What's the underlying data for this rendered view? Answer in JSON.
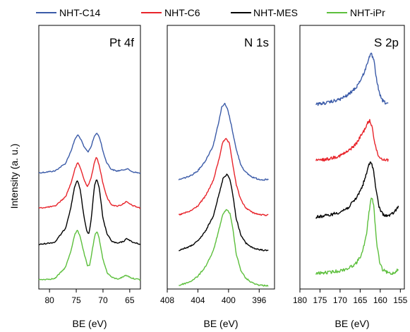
{
  "figure": {
    "ylabel": "Intensity (a. u.)"
  },
  "legend": [
    {
      "label": "NHT-C14",
      "color": "#3b5ba8"
    },
    {
      "label": "NHT-C6",
      "color": "#e8242b"
    },
    {
      "label": "NHT-MES",
      "color": "#000000"
    },
    {
      "label": "NHT-iPr",
      "color": "#5cbf3c"
    }
  ],
  "chart_data": [
    {
      "type": "line",
      "title": "Pt 4f",
      "xlabel": "BE (eV)",
      "xlim": [
        82,
        63
      ],
      "x_reversed": true,
      "ticks": [
        80,
        75,
        70,
        65
      ],
      "ylabel": "Intensity (a. u.)",
      "grid": false,
      "series": [
        {
          "name": "NHT-C14",
          "color": "#3b5ba8",
          "offset": 3,
          "x": [
            82,
            79,
            77,
            76,
            75.2,
            74.7,
            74.2,
            73.5,
            72.8,
            72.2,
            71.6,
            71.1,
            70.6,
            70,
            69.4,
            68.5,
            67.5,
            66.5,
            65.5,
            64.5,
            63
          ],
          "y": [
            0.05,
            0.1,
            0.3,
            0.62,
            0.95,
            1.05,
            0.95,
            0.72,
            0.6,
            0.75,
            1.02,
            1.1,
            0.96,
            0.62,
            0.35,
            0.15,
            0.1,
            0.12,
            0.16,
            0.08,
            0.04
          ]
        },
        {
          "name": "NHT-C6",
          "color": "#e8242b",
          "offset": 2,
          "x": [
            82,
            79,
            77,
            76,
            75.2,
            74.7,
            74.2,
            73.5,
            72.9,
            72.3,
            71.6,
            71.2,
            70.7,
            70,
            69.3,
            68.5,
            67.5,
            66.5,
            65.7,
            64.5,
            63
          ],
          "y": [
            0.05,
            0.1,
            0.35,
            0.7,
            1.1,
            1.25,
            1.1,
            0.78,
            0.62,
            0.8,
            1.25,
            1.4,
            1.18,
            0.7,
            0.35,
            0.15,
            0.1,
            0.14,
            0.22,
            0.12,
            0.05
          ]
        },
        {
          "name": "NHT-MES",
          "color": "#000000",
          "offset": 1,
          "x": [
            82,
            79,
            77,
            76,
            75.3,
            74.8,
            74.3,
            73.6,
            73,
            72.6,
            72.2,
            71.6,
            71.2,
            70.7,
            70,
            69.2,
            68.3,
            67.3,
            66.2,
            65.5,
            64.5,
            63
          ],
          "y": [
            0.02,
            0.08,
            0.45,
            1.0,
            1.55,
            1.7,
            1.5,
            0.8,
            0.35,
            0.3,
            0.7,
            1.55,
            1.75,
            1.5,
            0.7,
            0.28,
            0.1,
            0.05,
            0.1,
            0.18,
            0.08,
            0.03
          ]
        },
        {
          "name": "NHT-iPr",
          "color": "#5cbf3c",
          "offset": 0,
          "x": [
            82,
            79,
            77,
            76,
            75.3,
            74.8,
            74.3,
            73.6,
            72.9,
            72.5,
            72,
            71.5,
            71.1,
            70.7,
            70,
            69.2,
            68.3,
            67.3,
            66.5,
            65.7,
            64.5,
            63
          ],
          "y": [
            0.02,
            0.05,
            0.35,
            0.78,
            1.2,
            1.32,
            1.18,
            0.75,
            0.38,
            0.4,
            0.8,
            1.2,
            1.28,
            1.1,
            0.55,
            0.2,
            0.08,
            0.04,
            0.08,
            0.14,
            0.06,
            0.02
          ]
        }
      ]
    },
    {
      "type": "line",
      "title": "N 1s",
      "xlabel": "BE (eV)",
      "xlim": [
        408,
        394
      ],
      "x_reversed": true,
      "ticks": [
        408,
        404,
        400,
        396
      ],
      "grid": false,
      "series": [
        {
          "name": "NHT-C14",
          "color": "#3b5ba8",
          "offset": 3,
          "x": [
            406.5,
            405,
            404,
            403,
            402,
            401.3,
            400.9,
            400.5,
            400.1,
            399.6,
            399,
            398.4,
            397.8,
            397,
            396.2,
            395.5,
            394.8
          ],
          "y": [
            0.0,
            0.05,
            0.12,
            0.25,
            0.45,
            0.75,
            0.95,
            1.0,
            0.92,
            0.7,
            0.4,
            0.2,
            0.1,
            0.04,
            0.01,
            0.0,
            0.0
          ]
        },
        {
          "name": "NHT-C6",
          "color": "#e8242b",
          "offset": 2,
          "x": [
            406.5,
            405,
            404,
            403,
            402,
            401.2,
            400.8,
            400.3,
            399.9,
            399.5,
            399,
            398.4,
            397.8,
            397,
            396.2,
            395.5,
            394.8
          ],
          "y": [
            0.0,
            0.05,
            0.12,
            0.25,
            0.45,
            0.75,
            0.95,
            1.0,
            0.94,
            0.7,
            0.4,
            0.2,
            0.1,
            0.04,
            0.01,
            0.0,
            0.0
          ]
        },
        {
          "name": "NHT-MES",
          "color": "#000000",
          "offset": 1,
          "x": [
            406.5,
            405,
            404,
            403,
            402,
            401.2,
            400.7,
            400.2,
            399.8,
            399.4,
            399,
            398.4,
            397.8,
            397,
            396.2,
            395.5,
            394.8
          ],
          "y": [
            0.0,
            0.05,
            0.12,
            0.25,
            0.45,
            0.75,
            0.95,
            1.0,
            0.93,
            0.7,
            0.42,
            0.2,
            0.1,
            0.04,
            0.01,
            0.0,
            0.0
          ]
        },
        {
          "name": "NHT-iPr",
          "color": "#5cbf3c",
          "offset": 0,
          "x": [
            406.5,
            405,
            404,
            403,
            402,
            401.2,
            400.7,
            400.2,
            399.8,
            399.4,
            399,
            398.4,
            397.8,
            397,
            396.2,
            395.5,
            394.8
          ],
          "y": [
            0.0,
            0.05,
            0.12,
            0.25,
            0.45,
            0.75,
            0.95,
            1.0,
            0.94,
            0.72,
            0.42,
            0.2,
            0.1,
            0.04,
            0.01,
            0.0,
            0.0
          ]
        }
      ]
    },
    {
      "type": "line",
      "title": "S 2p",
      "xlabel": "BE (eV)",
      "xlim": [
        180,
        154
      ],
      "x_reversed": true,
      "ticks": [
        180,
        175,
        170,
        165,
        160,
        155
      ],
      "grid": false,
      "series": [
        {
          "name": "NHT-C14",
          "color": "#3b5ba8",
          "offset": 3,
          "x": [
            176,
            173,
            170,
            168,
            166,
            164.5,
            163.5,
            162.8,
            162.2,
            161.6,
            161,
            160.2,
            159.5,
            158.8,
            158
          ],
          "y": [
            0.0,
            0.05,
            0.15,
            0.28,
            0.5,
            0.8,
            1.1,
            1.4,
            1.48,
            1.3,
            0.8,
            0.3,
            0.12,
            0.05,
            0.03
          ]
        },
        {
          "name": "NHT-C6",
          "color": "#e8242b",
          "offset": 2,
          "x": [
            176,
            173,
            170,
            168,
            166,
            165,
            164,
            163.2,
            162.6,
            162,
            161.4,
            160.7,
            160,
            159.2,
            158
          ],
          "y": [
            0.0,
            0.05,
            0.15,
            0.28,
            0.5,
            0.7,
            0.9,
            1.1,
            1.18,
            1.0,
            0.55,
            0.2,
            0.08,
            0.04,
            0.02
          ]
        },
        {
          "name": "NHT-MES",
          "color": "#000000",
          "offset": 1,
          "x": [
            176,
            173,
            170,
            168,
            166,
            164.5,
            163.5,
            162.8,
            162.3,
            161.7,
            161,
            160.3,
            159.5,
            158.5,
            157.5,
            156.5,
            155.5
          ],
          "y": [
            0.0,
            0.05,
            0.15,
            0.28,
            0.55,
            0.9,
            1.25,
            1.55,
            1.65,
            1.4,
            0.75,
            0.3,
            0.1,
            0.04,
            0.05,
            0.15,
            0.3
          ]
        },
        {
          "name": "NHT-iPr",
          "color": "#5cbf3c",
          "offset": 0,
          "x": [
            176,
            173,
            170,
            168,
            166,
            164.5,
            163.5,
            162.8,
            162.2,
            161.6,
            161,
            160.2,
            159.5,
            158.5,
            157.5,
            156.5,
            155.5
          ],
          "y": [
            0.0,
            0.03,
            0.08,
            0.15,
            0.3,
            0.6,
            1.1,
            1.8,
            2.3,
            2.0,
            1.0,
            0.35,
            0.12,
            0.04,
            0.0,
            0.02,
            0.15
          ]
        }
      ]
    }
  ]
}
